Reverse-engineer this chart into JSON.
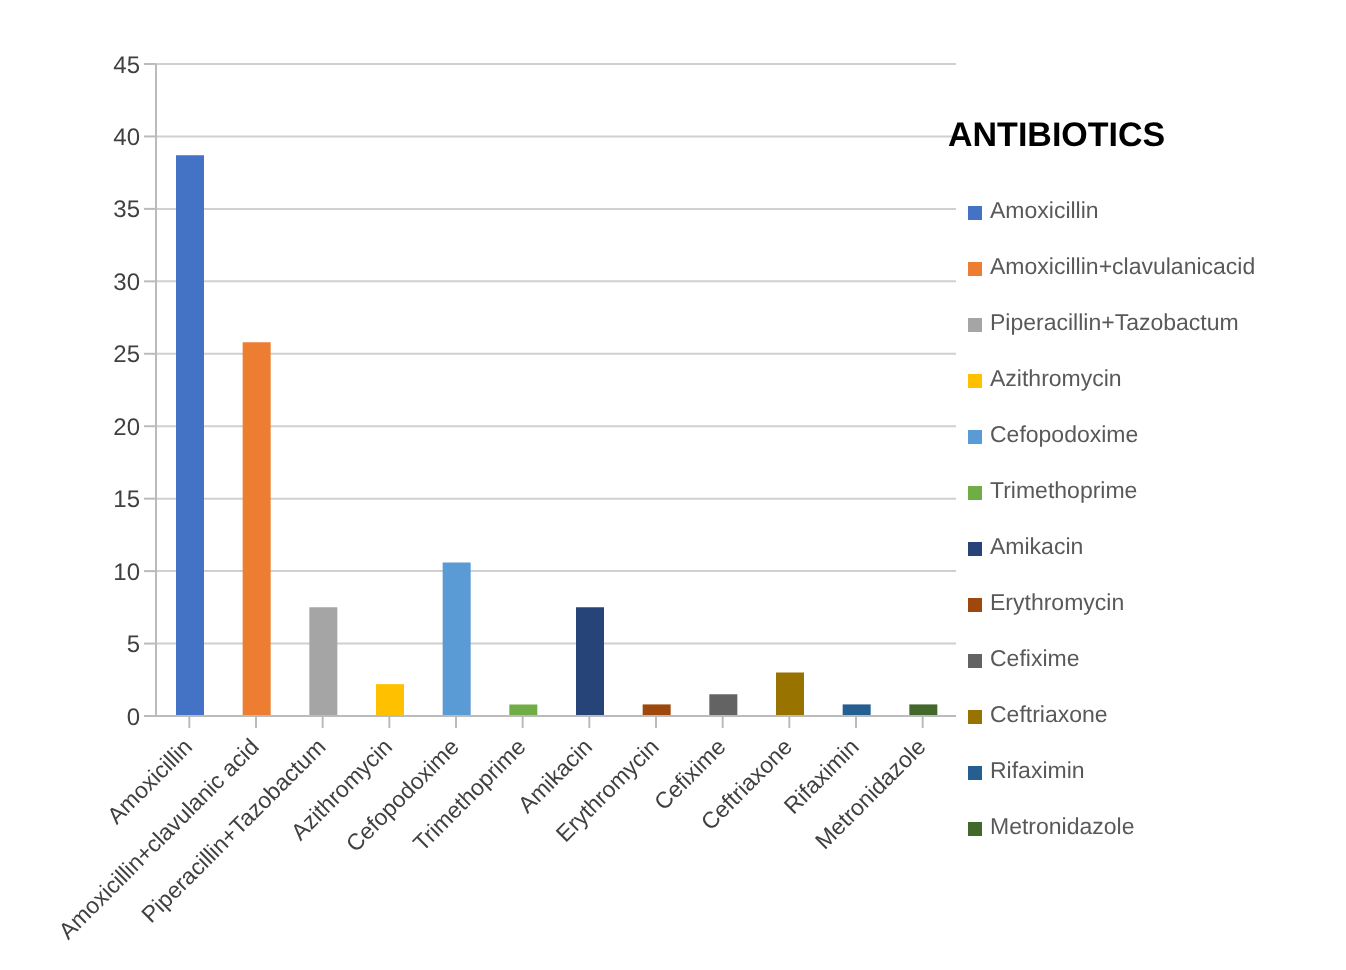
{
  "chart_data": {
    "type": "bar",
    "stacked": true,
    "legend_title": "ANTIBIOTICS",
    "legend": "right",
    "grid": "y",
    "ylim": [
      0,
      45
    ],
    "yticks": [
      0,
      5,
      10,
      15,
      20,
      25,
      30,
      35,
      40,
      45
    ],
    "categories": [
      "Amoxicillin",
      "Amoxicillin+clavulanic acid",
      "Piperacillin+Tazobactum",
      "Azithromycin",
      "Cefopodoxime",
      "Trimethoprime",
      "Amikacin",
      "Erythromycin",
      "Cefixime",
      "Ceftriaxone",
      "Rifaximin",
      "Metronidazole"
    ],
    "series": [
      {
        "name": "Amoxicillin",
        "color": "#4472c4",
        "values": [
          38.7,
          null,
          null,
          null,
          null,
          null,
          null,
          null,
          null,
          null,
          null,
          null
        ]
      },
      {
        "name": "Amoxicillin+clavulanicacid",
        "color": "#ed7d31",
        "values": [
          null,
          25.8,
          null,
          null,
          null,
          null,
          null,
          null,
          null,
          null,
          null,
          null
        ]
      },
      {
        "name": "Piperacillin+Tazobactum",
        "color": "#a5a5a5",
        "values": [
          null,
          null,
          7.5,
          null,
          null,
          null,
          null,
          null,
          null,
          null,
          null,
          null
        ]
      },
      {
        "name": "Azithromycin",
        "color": "#ffc000",
        "values": [
          null,
          null,
          null,
          2.2,
          null,
          null,
          null,
          null,
          null,
          null,
          null,
          null
        ]
      },
      {
        "name": "Cefopodoxime",
        "color": "#5b9bd5",
        "values": [
          null,
          null,
          null,
          null,
          10.6,
          null,
          null,
          null,
          null,
          null,
          null,
          null
        ]
      },
      {
        "name": "Trimethoprime",
        "color": "#70ad47",
        "values": [
          null,
          null,
          null,
          null,
          null,
          0.8,
          null,
          null,
          null,
          null,
          null,
          null
        ]
      },
      {
        "name": "Amikacin",
        "color": "#264478",
        "values": [
          null,
          null,
          null,
          null,
          null,
          null,
          7.5,
          null,
          null,
          null,
          null,
          null
        ]
      },
      {
        "name": "Erythromycin",
        "color": "#9e480e",
        "values": [
          null,
          null,
          null,
          null,
          null,
          null,
          null,
          0.8,
          null,
          null,
          null,
          null
        ]
      },
      {
        "name": "Cefixime",
        "color": "#636363",
        "values": [
          null,
          null,
          null,
          null,
          null,
          null,
          null,
          null,
          1.5,
          null,
          null,
          null
        ]
      },
      {
        "name": "Ceftriaxone",
        "color": "#997300",
        "values": [
          null,
          null,
          null,
          null,
          null,
          null,
          null,
          null,
          null,
          3,
          null,
          null
        ]
      },
      {
        "name": "Rifaximin",
        "color": "#255e91",
        "values": [
          null,
          null,
          null,
          null,
          null,
          null,
          null,
          null,
          null,
          null,
          0.8,
          null
        ]
      },
      {
        "name": "Metronidazole",
        "color": "#43682b",
        "values": [
          null,
          null,
          null,
          null,
          null,
          null,
          null,
          null,
          null,
          null,
          null,
          0.8
        ]
      }
    ]
  }
}
